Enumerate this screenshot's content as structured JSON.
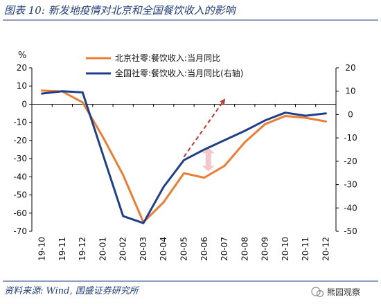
{
  "figure": {
    "title": "图表 10:  新发地疫情对北京和全国餐饮收入的影响",
    "source": "资料来源:  Wind,  国盛证券研究所",
    "watermark": "熊园观察"
  },
  "colors": {
    "title": "#1f3d7a",
    "beijing": "#ED7D31",
    "national": "#1F3F8C",
    "arrow": "#C0392B",
    "axis": "#000000",
    "divider": "#1f3d7a"
  },
  "chart_data": {
    "type": "line",
    "unit_label": "%",
    "categories": [
      "19-10",
      "19-11",
      "19-12",
      "20-01",
      "20-02",
      "20-03",
      "20-04",
      "20-05",
      "20-06",
      "20-07",
      "20-08",
      "20-09",
      "20-10",
      "20-11",
      "20-12"
    ],
    "left_axis": {
      "ylim": [
        -70,
        20
      ],
      "ticks": [
        20,
        10,
        0,
        -10,
        -20,
        -30,
        -40,
        -50,
        -60,
        -70
      ]
    },
    "right_axis": {
      "ylim": [
        -50,
        20
      ],
      "ticks": [
        20,
        10,
        0,
        -10,
        -20,
        -30,
        -40,
        -50
      ]
    },
    "legend_position": "top-center",
    "grid": false,
    "series": [
      {
        "name": "北京社零:餐饮收入:当月同比",
        "axis": "left",
        "color": "#ED7D31",
        "values": [
          7.5,
          7.0,
          1.0,
          -18,
          -39,
          -65,
          -54,
          -38,
          -40.5,
          -34,
          -21,
          -11,
          -6.5,
          -7.5,
          -9.5
        ]
      },
      {
        "name": "全国社零:餐饮收入:当月同比(右轴)",
        "axis": "right",
        "color": "#1F3F8C",
        "values": [
          9.0,
          10.0,
          9.5,
          -17,
          -43.5,
          -46.5,
          -31,
          -19.5,
          -15,
          -11,
          -7,
          -2.5,
          0.8,
          -0.5,
          0.5
        ]
      }
    ],
    "annotations": [
      {
        "type": "dashed-arrow",
        "color": "#C0392B",
        "from_category": "20-05",
        "to_category": "20-07"
      },
      {
        "type": "double-arrow",
        "color": "#E89A9A",
        "category": "20-06"
      }
    ]
  }
}
